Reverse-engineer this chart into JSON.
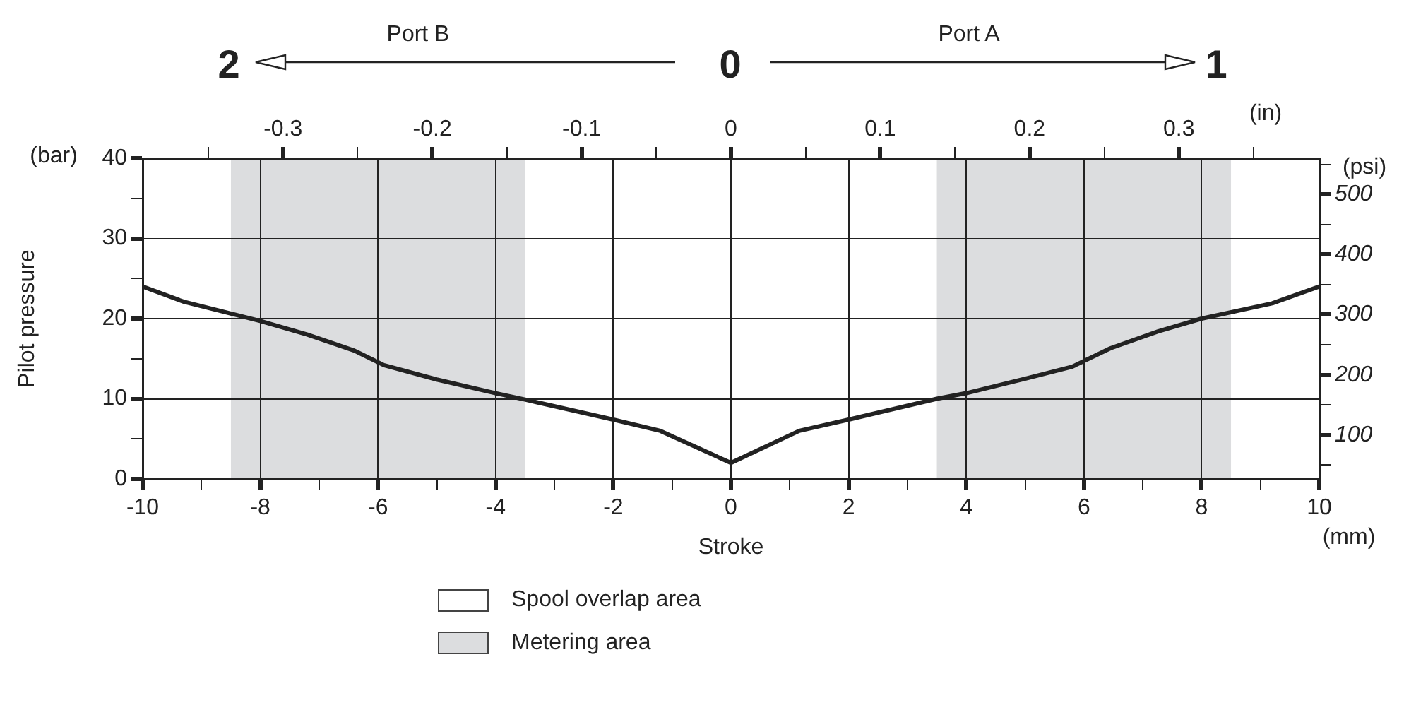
{
  "chart_data": {
    "type": "line",
    "annotations": [
      "Port B",
      "Port A",
      "2",
      "0",
      "1",
      "(bar)",
      "(mm)",
      "Spool overlap area"
    ],
    "xlabel": "Stroke",
    "ylabel": "Pilot pressure",
    "y2label": "(psi)",
    "x2label": "(in)",
    "x": [
      -10,
      -9.3,
      -8,
      -7.2,
      -6.4,
      -5.9,
      -5,
      -4,
      -3.5,
      -2,
      -1.2,
      0,
      1.16,
      2,
      3.5,
      4,
      5,
      5.8,
      6.45,
      7.26,
      8,
      9.2,
      10
    ],
    "series": [
      {
        "color": "#222222",
        "values": [
          24,
          22.1,
          19.7,
          18,
          16,
          14.2,
          12.4,
          10.7,
          9.9,
          7.4,
          6,
          2,
          6,
          7.4,
          10,
          10.7,
          12.5,
          14,
          16.3,
          18.4,
          20,
          21.9,
          24
        ]
      }
    ],
    "xlim": [
      -10,
      10
    ],
    "xticks": [
      -10,
      {
        "value": -9,
        "label": null
      },
      -8,
      {
        "value": -7,
        "label": null
      },
      -6,
      {
        "value": -5,
        "label": null
      },
      -4,
      {
        "value": -3,
        "label": null
      },
      -2,
      {
        "value": -1,
        "label": null
      },
      0,
      {
        "value": 1,
        "label": null
      },
      2,
      {
        "value": 3,
        "label": null
      },
      4,
      {
        "value": 5,
        "label": null
      },
      6,
      {
        "value": 7,
        "label": null
      },
      8,
      {
        "value": 9,
        "label": null
      },
      10
    ],
    "ylim": [
      0,
      40
    ],
    "yticks": [
      0,
      {
        "value": 5,
        "label": null
      },
      10,
      {
        "value": 15,
        "label": null
      },
      20,
      {
        "value": 25,
        "label": null
      },
      30,
      {
        "value": 35,
        "label": null
      },
      40
    ],
    "x2lim": [
      -0.394,
      0.394
    ],
    "x2ticks": [
      {
        "value": -0.35,
        "label": null
      },
      -0.3,
      {
        "value": -0.25,
        "label": null
      },
      -0.2,
      {
        "value": -0.15,
        "label": null
      },
      -0.1,
      {
        "value": -0.05,
        "label": null
      },
      0,
      {
        "value": 0.05,
        "label": null
      },
      0.1,
      {
        "value": 0.15,
        "label": null
      },
      0.2,
      {
        "value": 0.25,
        "label": null
      },
      0.3,
      {
        "value": 0.35,
        "label": null
      }
    ],
    "y2lim": [
      27,
      560
    ],
    "y2ticks": [
      {
        "value": 50,
        "label": null
      },
      100,
      {
        "value": 150,
        "label": null
      },
      200,
      {
        "value": 250,
        "label": null
      },
      300,
      {
        "value": 350,
        "label": null
      },
      400,
      {
        "value": 450,
        "label": null
      },
      500,
      {
        "value": 550,
        "label": null
      }
    ],
    "bands": [
      {
        "axis": "x",
        "from": -8.5,
        "to": -3.5,
        "label": "Metering area",
        "color": "#dcdddf"
      },
      {
        "axis": "x",
        "from": 3.5,
        "to": 8.5,
        "color": "#dcdddf"
      }
    ],
    "grid": true,
    "legend": "bottom",
    "line_style": "solid"
  }
}
